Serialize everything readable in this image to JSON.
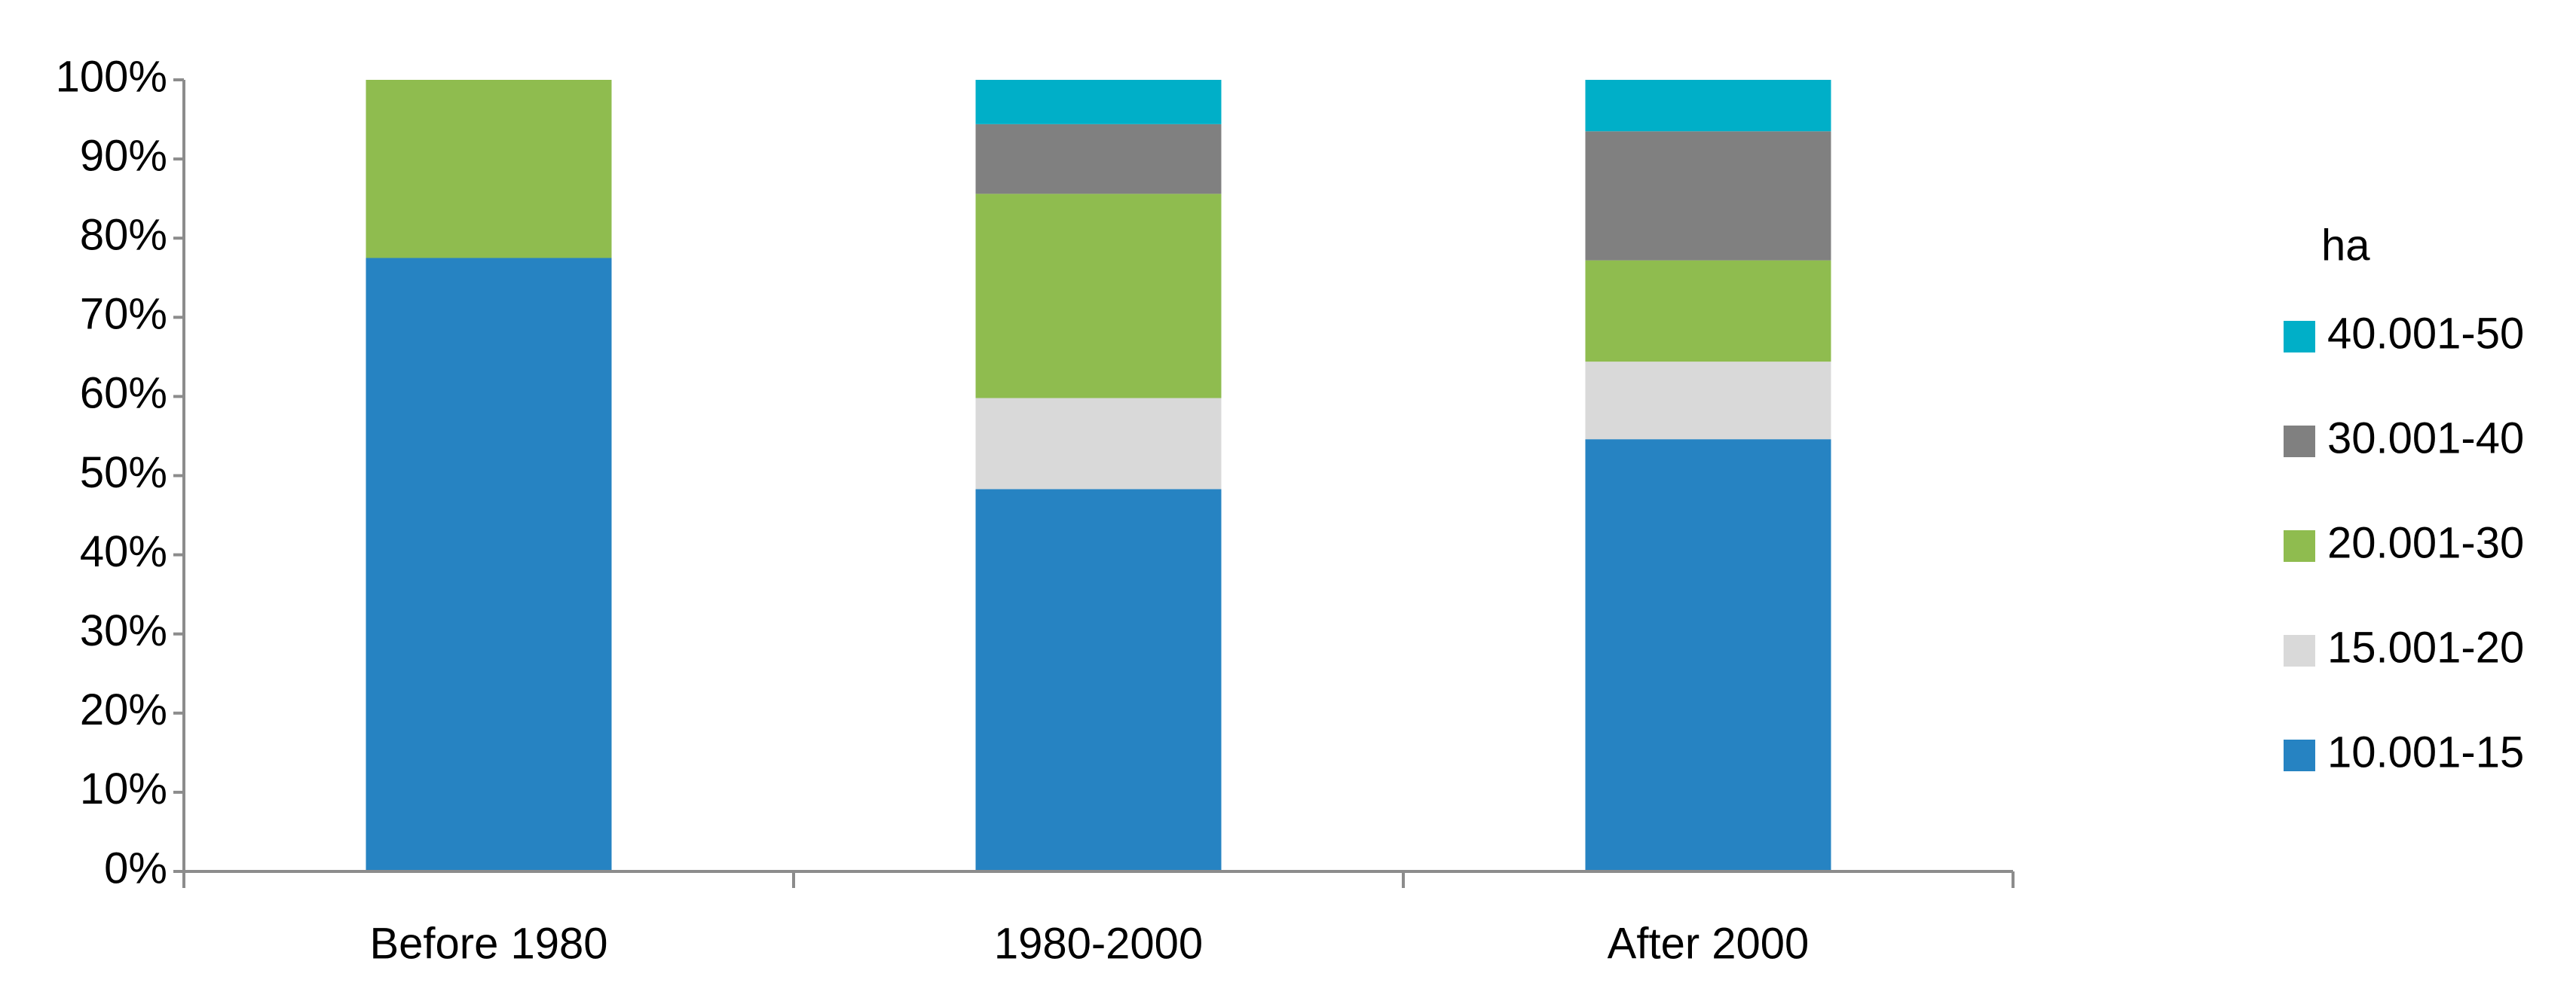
{
  "chart_data": {
    "type": "stacked_bar",
    "categories": [
      "Before 1980",
      "1980-2000",
      "After 2000"
    ],
    "series": [
      {
        "name": "10.001-15",
        "color": "#2683c2",
        "values": [
          77.5,
          48.3,
          54.6
        ]
      },
      {
        "name": "15.001-20",
        "color": "#d9d9d9",
        "values": [
          0,
          11.5,
          9.8
        ]
      },
      {
        "name": "20.001-30",
        "color": "#8fbc4f",
        "values": [
          22.5,
          25.8,
          12.8
        ]
      },
      {
        "name": "30.001-40",
        "color": "#808080",
        "values": [
          0,
          8.8,
          16.3
        ]
      },
      {
        "name": "40.001-50",
        "color": "#00afc8",
        "values": [
          0,
          5.6,
          6.5
        ]
      }
    ],
    "legend_title": "ha",
    "legend": "right",
    "ylim": [
      0,
      100
    ],
    "yticks": [
      {
        "value": 0,
        "label": "0%"
      },
      {
        "value": 10,
        "label": "10%"
      },
      {
        "value": 20,
        "label": "20%"
      },
      {
        "value": 30,
        "label": "30%"
      },
      {
        "value": 40,
        "label": "40%"
      },
      {
        "value": 50,
        "label": "50%"
      },
      {
        "value": 60,
        "label": "60%"
      },
      {
        "value": 70,
        "label": "70%"
      },
      {
        "value": 80,
        "label": "80%"
      },
      {
        "value": 90,
        "label": "90%"
      },
      {
        "value": 100,
        "label": "100%"
      }
    ]
  }
}
